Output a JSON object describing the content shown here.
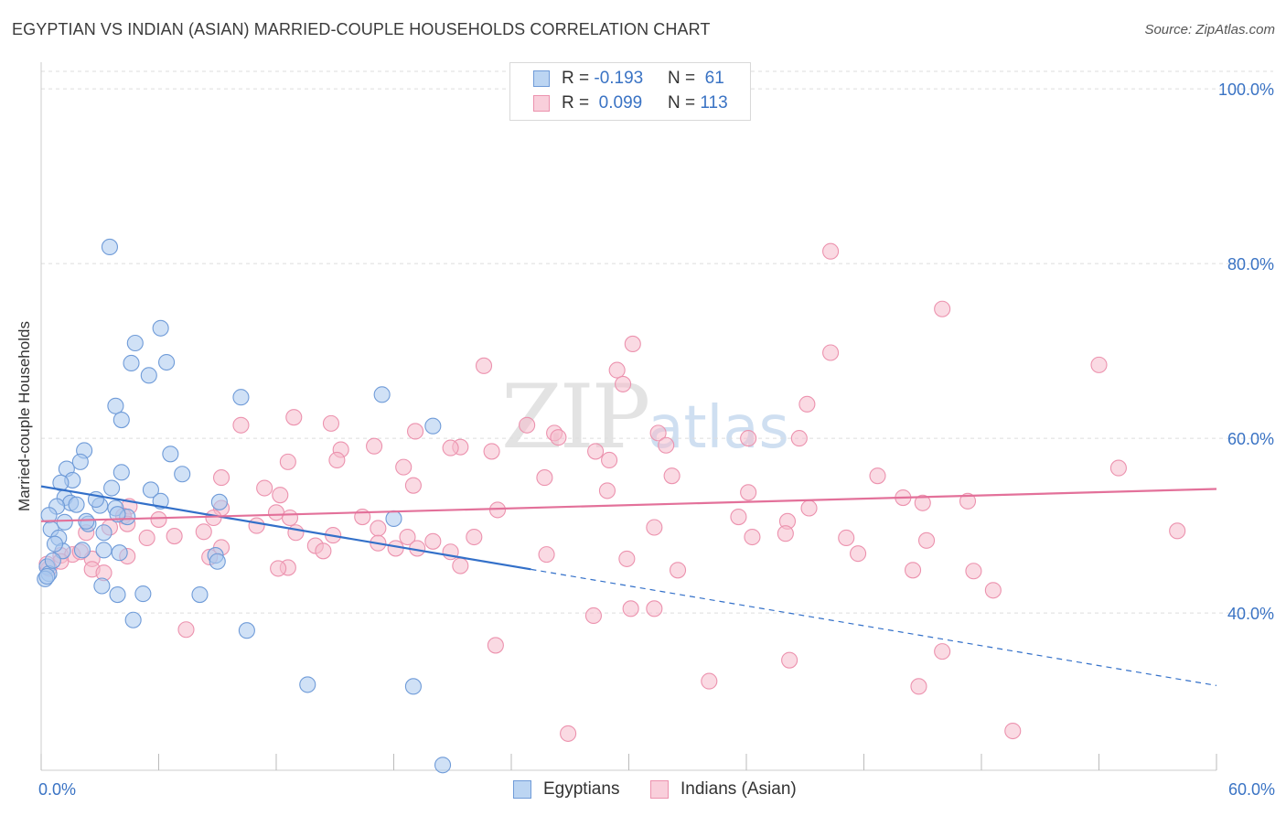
{
  "title": "EGYPTIAN VS INDIAN (ASIAN) MARRIED-COUPLE HOUSEHOLDS CORRELATION CHART",
  "source": "Source: ZipAtlas.com",
  "watermark": {
    "zip": "ZIP",
    "atlas": "atlas"
  },
  "colors": {
    "blue_fill": "#a9c8ee",
    "blue_stroke": "#6f9bd8",
    "blue_line": "#3370c9",
    "pink_fill": "#f6bccc",
    "pink_stroke": "#ec92ae",
    "pink_line": "#e3719a",
    "tick_text": "#3a73c4",
    "grid": "#dddddd"
  },
  "legend": {
    "rows": [
      {
        "r_label": "R = ",
        "r_value": "-0.193",
        "n_label": "N = ",
        "n_value": " 61"
      },
      {
        "r_label": "R = ",
        "r_value": " 0.099",
        "n_label": "N = ",
        "n_value": "113"
      }
    ]
  },
  "bottom_legend": [
    {
      "label": "Egyptians",
      "icon": "square-swatch-blue"
    },
    {
      "label": "Indians (Asian)",
      "icon": "square-swatch-pink"
    }
  ],
  "chart_data": {
    "type": "scatter",
    "title": "EGYPTIAN VS INDIAN (ASIAN) MARRIED-COUPLE HOUSEHOLDS CORRELATION CHART",
    "xlabel": "",
    "ylabel": "Married-couple Households",
    "xlim": [
      0,
      60
    ],
    "ylim": [
      22,
      102
    ],
    "x_tick_labels": [
      "0.0%",
      "60.0%"
    ],
    "y_ticks": [
      40,
      60,
      80,
      100
    ],
    "y_tick_labels": [
      "40.0%",
      "60.0%",
      "80.0%",
      "100.0%"
    ],
    "grid": true,
    "series": [
      {
        "name": "Egyptians",
        "r": -0.193,
        "n": 61,
        "trend": {
          "x0": 0,
          "y0": 54.5,
          "x1": 25,
          "y1": 45,
          "dash_to_x": 60,
          "dash_to_y": 31.7
        },
        "points": [
          [
            3.5,
            81.9
          ],
          [
            6.1,
            72.6
          ],
          [
            4.8,
            70.9
          ],
          [
            6.4,
            68.7
          ],
          [
            4.6,
            68.6
          ],
          [
            5.5,
            67.2
          ],
          [
            17.4,
            65.0
          ],
          [
            10.2,
            64.7
          ],
          [
            3.8,
            63.7
          ],
          [
            4.1,
            62.1
          ],
          [
            20.0,
            61.4
          ],
          [
            2.2,
            58.6
          ],
          [
            6.6,
            58.2
          ],
          [
            2.0,
            57.3
          ],
          [
            1.3,
            56.5
          ],
          [
            4.1,
            56.1
          ],
          [
            7.2,
            55.9
          ],
          [
            1.6,
            55.2
          ],
          [
            1.0,
            54.9
          ],
          [
            3.6,
            54.3
          ],
          [
            5.6,
            54.1
          ],
          [
            1.2,
            53.2
          ],
          [
            6.1,
            52.8
          ],
          [
            9.1,
            52.7
          ],
          [
            1.5,
            52.6
          ],
          [
            3.0,
            52.3
          ],
          [
            0.8,
            52.2
          ],
          [
            3.8,
            52.0
          ],
          [
            0.4,
            51.2
          ],
          [
            4.4,
            51.0
          ],
          [
            2.4,
            50.2
          ],
          [
            18.0,
            50.8
          ],
          [
            2.3,
            50.5
          ],
          [
            0.5,
            49.6
          ],
          [
            3.9,
            51.3
          ],
          [
            3.2,
            49.2
          ],
          [
            0.9,
            48.6
          ],
          [
            2.1,
            47.2
          ],
          [
            3.2,
            47.2
          ],
          [
            4.0,
            46.9
          ],
          [
            1.1,
            47.1
          ],
          [
            8.9,
            46.6
          ],
          [
            9.0,
            45.9
          ],
          [
            0.3,
            45.3
          ],
          [
            0.4,
            44.5
          ],
          [
            0.2,
            43.9
          ],
          [
            3.1,
            43.1
          ],
          [
            3.9,
            42.1
          ],
          [
            5.2,
            42.2
          ],
          [
            8.1,
            42.1
          ],
          [
            4.7,
            39.2
          ],
          [
            10.5,
            38.0
          ],
          [
            13.6,
            31.8
          ],
          [
            19.0,
            31.6
          ],
          [
            20.5,
            22.6
          ],
          [
            0.6,
            46.0
          ],
          [
            1.2,
            50.4
          ],
          [
            2.8,
            53.0
          ],
          [
            0.7,
            47.9
          ],
          [
            1.8,
            52.4
          ],
          [
            0.3,
            44.2
          ]
        ]
      },
      {
        "name": "Indians (Asian)",
        "r": 0.099,
        "n": 113,
        "trend": {
          "x0": 0,
          "y0": 50.5,
          "x1": 60,
          "y1": 54.2
        },
        "points": [
          [
            40.3,
            81.4
          ],
          [
            46.0,
            74.8
          ],
          [
            30.2,
            70.8
          ],
          [
            40.3,
            69.8
          ],
          [
            22.6,
            68.3
          ],
          [
            54.0,
            68.4
          ],
          [
            29.4,
            67.8
          ],
          [
            29.7,
            66.2
          ],
          [
            39.1,
            63.9
          ],
          [
            12.9,
            62.4
          ],
          [
            14.8,
            61.7
          ],
          [
            10.2,
            61.5
          ],
          [
            24.8,
            61.5
          ],
          [
            19.1,
            60.8
          ],
          [
            26.2,
            60.6
          ],
          [
            31.5,
            60.6
          ],
          [
            26.4,
            60.1
          ],
          [
            36.1,
            60.0
          ],
          [
            38.7,
            60.0
          ],
          [
            17.0,
            59.1
          ],
          [
            21.4,
            59.0
          ],
          [
            31.9,
            59.2
          ],
          [
            20.9,
            58.9
          ],
          [
            23.0,
            58.5
          ],
          [
            15.3,
            58.7
          ],
          [
            28.3,
            58.5
          ],
          [
            15.1,
            57.5
          ],
          [
            12.6,
            57.3
          ],
          [
            29.0,
            57.5
          ],
          [
            18.5,
            56.7
          ],
          [
            55.0,
            56.6
          ],
          [
            9.2,
            55.5
          ],
          [
            25.7,
            55.5
          ],
          [
            32.2,
            55.7
          ],
          [
            42.7,
            55.7
          ],
          [
            11.4,
            54.3
          ],
          [
            19.0,
            54.6
          ],
          [
            28.9,
            54.0
          ],
          [
            36.1,
            53.8
          ],
          [
            12.2,
            53.5
          ],
          [
            44.0,
            53.2
          ],
          [
            45.0,
            52.6
          ],
          [
            47.3,
            52.8
          ],
          [
            9.2,
            52.0
          ],
          [
            4.5,
            52.2
          ],
          [
            12.0,
            51.5
          ],
          [
            23.3,
            51.8
          ],
          [
            35.6,
            51.0
          ],
          [
            39.2,
            52.0
          ],
          [
            12.7,
            50.9
          ],
          [
            4.2,
            51.1
          ],
          [
            16.4,
            51.0
          ],
          [
            4.4,
            50.2
          ],
          [
            6.0,
            50.7
          ],
          [
            8.3,
            49.3
          ],
          [
            31.3,
            49.8
          ],
          [
            17.2,
            49.7
          ],
          [
            11.0,
            50.0
          ],
          [
            38.1,
            50.5
          ],
          [
            2.3,
            49.2
          ],
          [
            3.5,
            49.8
          ],
          [
            6.8,
            48.8
          ],
          [
            13.0,
            49.2
          ],
          [
            14.9,
            48.9
          ],
          [
            17.2,
            48.0
          ],
          [
            18.7,
            48.7
          ],
          [
            22.1,
            48.7
          ],
          [
            36.3,
            48.7
          ],
          [
            41.1,
            48.6
          ],
          [
            45.2,
            48.3
          ],
          [
            5.4,
            48.6
          ],
          [
            9.2,
            47.5
          ],
          [
            14.0,
            47.7
          ],
          [
            18.1,
            47.4
          ],
          [
            19.2,
            47.4
          ],
          [
            20.9,
            47.0
          ],
          [
            25.8,
            46.7
          ],
          [
            29.9,
            46.2
          ],
          [
            14.4,
            47.1
          ],
          [
            1.0,
            46.6
          ],
          [
            1.6,
            46.7
          ],
          [
            2.6,
            46.2
          ],
          [
            4.4,
            46.5
          ],
          [
            8.6,
            46.4
          ],
          [
            12.6,
            45.2
          ],
          [
            21.4,
            45.4
          ],
          [
            32.5,
            44.9
          ],
          [
            2.6,
            45.0
          ],
          [
            44.5,
            44.9
          ],
          [
            47.6,
            44.8
          ],
          [
            1.0,
            45.9
          ],
          [
            0.4,
            45.1
          ],
          [
            3.2,
            44.6
          ],
          [
            48.6,
            42.6
          ],
          [
            30.1,
            40.5
          ],
          [
            31.3,
            40.5
          ],
          [
            28.2,
            39.7
          ],
          [
            7.4,
            38.1
          ],
          [
            23.2,
            36.3
          ],
          [
            46.0,
            35.6
          ],
          [
            38.2,
            34.6
          ],
          [
            34.1,
            32.2
          ],
          [
            44.8,
            31.6
          ],
          [
            26.9,
            26.2
          ],
          [
            49.6,
            26.5
          ],
          [
            38.0,
            49.1
          ],
          [
            20.0,
            48.2
          ],
          [
            8.8,
            50.9
          ],
          [
            58.0,
            49.4
          ],
          [
            41.7,
            46.8
          ],
          [
            12.1,
            45.1
          ],
          [
            0.3,
            45.6
          ],
          [
            2.0,
            47.0
          ]
        ]
      }
    ]
  }
}
